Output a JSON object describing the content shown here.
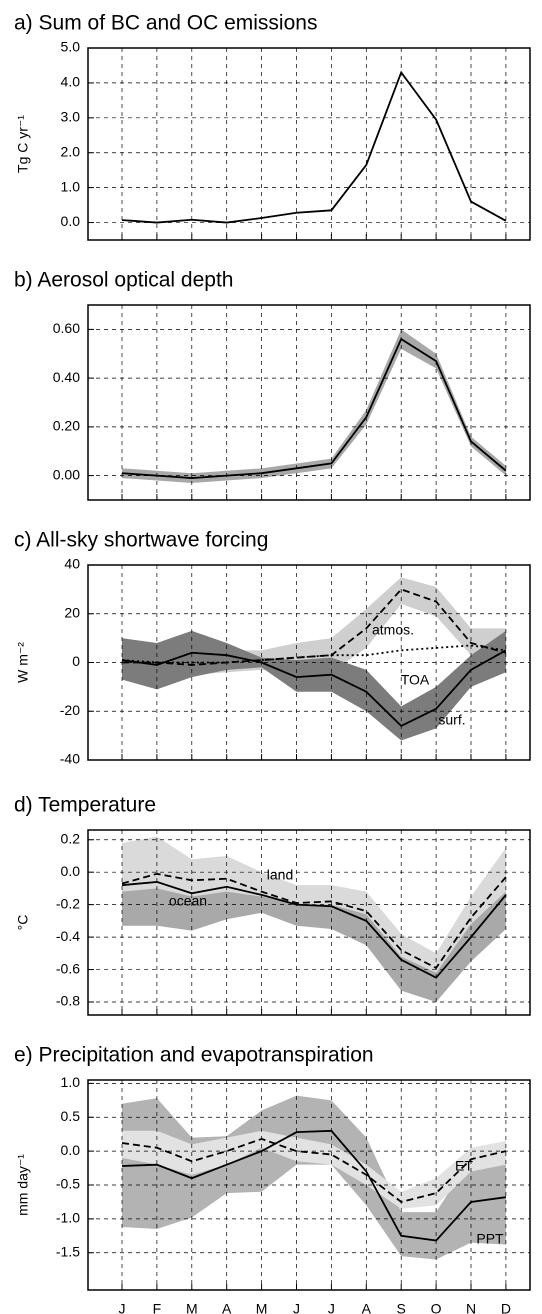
{
  "chart_data": [
    {
      "type": "line",
      "title": "a) Sum of BC and OC emissions",
      "y_label": "Tg C yr⁻¹",
      "ylim": [
        -0.5,
        5.0
      ],
      "yticks": [
        {
          "value": 0,
          "label": "0.0"
        },
        {
          "value": 1,
          "label": "1.0"
        },
        {
          "value": 2,
          "label": "2.0"
        },
        {
          "value": 3,
          "label": "3.0"
        },
        {
          "value": 4,
          "label": "4.0"
        },
        {
          "value": 5,
          "label": "5.0"
        }
      ],
      "grid": true,
      "series": [
        {
          "color": "#000000",
          "dash": "solid",
          "values": [
            0.07,
            0.0,
            0.08,
            0.0,
            0.13,
            0.28,
            0.35,
            1.65,
            4.3,
            2.95,
            0.6,
            0.05
          ]
        }
      ]
    },
    {
      "type": "line",
      "title": "b) Aerosol optical depth",
      "ylim": [
        -0.1,
        0.7
      ],
      "yticks": [
        {
          "value": 0,
          "label": "0.00"
        },
        {
          "value": 0.2,
          "label": "0.20"
        },
        {
          "value": 0.4,
          "label": "0.40"
        },
        {
          "value": 0.6,
          "label": "0.60"
        }
      ],
      "grid": true,
      "bands": [
        {
          "color": "#a8a8a8",
          "upper": [
            0.03,
            0.02,
            0.01,
            0.02,
            0.03,
            0.05,
            0.07,
            0.27,
            0.6,
            0.5,
            0.16,
            0.04
          ],
          "lower": [
            -0.01,
            -0.02,
            -0.03,
            -0.02,
            -0.01,
            0.01,
            0.03,
            0.21,
            0.52,
            0.44,
            0.12,
            0.0
          ]
        }
      ],
      "series": [
        {
          "color": "#000000",
          "dash": "solid",
          "values": [
            0.01,
            0.0,
            -0.01,
            0.0,
            0.01,
            0.03,
            0.05,
            0.24,
            0.56,
            0.47,
            0.14,
            0.02
          ]
        }
      ]
    },
    {
      "type": "line",
      "title": "c) All-sky shortwave forcing",
      "y_label": "W m⁻²",
      "ylim": [
        -40,
        40
      ],
      "yticks": [
        -40,
        -20,
        0,
        20,
        40
      ],
      "grid": true,
      "bands": [
        {
          "color": "#cfcfcf",
          "upper": [
            7,
            5,
            6,
            5,
            5,
            8,
            10,
            22,
            35,
            31,
            14,
            14
          ],
          "lower": [
            -5,
            -6,
            -5,
            -4,
            -3,
            -3,
            -4,
            6,
            24,
            19,
            3,
            -3
          ]
        },
        {
          "color": "#7c7c7c",
          "upper": [
            10,
            8,
            13,
            8,
            2,
            1,
            2,
            -3,
            -18,
            -10,
            3,
            13
          ],
          "lower": [
            -7,
            -11,
            -6,
            -3,
            -2,
            -12,
            -12,
            -20,
            -32,
            -27,
            -10,
            -4
          ]
        }
      ],
      "series": [
        {
          "color": "#000000",
          "dash": "dashed",
          "values": [
            0,
            0,
            -1,
            0,
            1,
            2,
            3,
            14,
            30,
            25,
            8,
            4
          ]
        },
        {
          "color": "#000000",
          "dash": "dotted",
          "values": [
            1,
            0,
            0,
            0,
            1,
            2,
            3,
            3,
            5,
            6,
            7,
            5
          ]
        },
        {
          "color": "#000000",
          "dash": "solid",
          "values": [
            1,
            -1,
            4,
            3,
            0,
            -6,
            -5,
            -12,
            -26,
            -19,
            -3,
            5
          ]
        }
      ],
      "annotations": [
        "atmos.",
        "TOA",
        "surf."
      ]
    },
    {
      "type": "line",
      "title": "d) Temperature",
      "y_label": "°C",
      "ylim": [
        -0.88,
        0.26
      ],
      "yticks": [
        -0.8,
        -0.6,
        -0.4,
        -0.2,
        {
          "value": 0,
          "label": "0.0"
        },
        0.2
      ],
      "grid": true,
      "bands": [
        {
          "color": "#a9a9a9",
          "upper": [
            0.17,
            0.21,
            0.05,
            0.08,
            -0.05,
            -0.1,
            -0.1,
            -0.15,
            -0.4,
            -0.52,
            -0.2,
            0.08
          ],
          "lower": [
            -0.33,
            -0.33,
            -0.36,
            -0.29,
            -0.25,
            -0.33,
            -0.35,
            -0.45,
            -0.73,
            -0.8,
            -0.55,
            -0.35
          ]
        },
        {
          "color": "#dadada",
          "upper": [
            0.18,
            0.22,
            0.08,
            0.1,
            0.0,
            -0.08,
            -0.08,
            -0.12,
            -0.38,
            -0.5,
            -0.15,
            0.15
          ],
          "lower": [
            -0.12,
            -0.1,
            -0.15,
            -0.12,
            -0.15,
            -0.2,
            -0.2,
            -0.26,
            -0.52,
            -0.62,
            -0.32,
            -0.12
          ]
        }
      ],
      "series": [
        {
          "color": "#000000",
          "dash": "dashed",
          "values": [
            -0.07,
            -0.01,
            -0.05,
            -0.04,
            -0.12,
            -0.19,
            -0.18,
            -0.24,
            -0.48,
            -0.59,
            -0.28,
            -0.03
          ]
        },
        {
          "color": "#000000",
          "dash": "solid",
          "values": [
            -0.08,
            -0.06,
            -0.13,
            -0.09,
            -0.14,
            -0.2,
            -0.21,
            -0.3,
            -0.54,
            -0.65,
            -0.4,
            -0.14
          ]
        }
      ],
      "annotations": [
        "land",
        "ocean"
      ]
    },
    {
      "type": "line",
      "title": "e) Precipitation and evapotranspiration",
      "y_label": "mm day⁻¹",
      "ylim": [
        -2.05,
        1.05
      ],
      "yticks": [
        -1.5,
        {
          "value": -1,
          "label": "-1.0"
        },
        -0.5,
        {
          "value": 0,
          "label": "0.0"
        },
        0.5,
        {
          "value": 1,
          "label": "1.0"
        }
      ],
      "grid": true,
      "categories": [
        "J",
        "F",
        "M",
        "A",
        "M",
        "J",
        "J",
        "A",
        "S",
        "O",
        "N",
        "D"
      ],
      "bands": [
        {
          "color": "#b3b3b3",
          "upper": [
            0.7,
            0.78,
            0.2,
            0.22,
            0.6,
            0.82,
            0.75,
            0.2,
            -0.9,
            -0.9,
            -0.1,
            0.05
          ],
          "lower": [
            -1.12,
            -1.15,
            -0.98,
            -0.62,
            -0.6,
            -0.2,
            -0.2,
            -0.8,
            -1.55,
            -1.6,
            -1.35,
            -1.38
          ]
        },
        {
          "color": "#e2e2e2",
          "upper": [
            0.3,
            0.3,
            0.1,
            0.2,
            0.3,
            0.2,
            0.1,
            -0.2,
            -0.6,
            -0.4,
            0.05,
            0.15
          ],
          "lower": [
            -0.1,
            -0.2,
            -0.35,
            -0.2,
            0.05,
            -0.15,
            -0.2,
            -0.5,
            -0.85,
            -0.8,
            -0.3,
            -0.2
          ]
        }
      ],
      "series": [
        {
          "color": "#000000",
          "dash": "dashed",
          "values": [
            0.12,
            0.05,
            -0.15,
            0.0,
            0.18,
            0.0,
            -0.05,
            -0.35,
            -0.75,
            -0.62,
            -0.12,
            0.0
          ]
        },
        {
          "color": "#000000",
          "dash": "solid",
          "values": [
            -0.22,
            -0.2,
            -0.4,
            -0.2,
            0.0,
            0.28,
            0.3,
            -0.3,
            -1.25,
            -1.32,
            -0.75,
            -0.68
          ]
        }
      ],
      "annotations": [
        "ET",
        "PPT"
      ]
    }
  ]
}
